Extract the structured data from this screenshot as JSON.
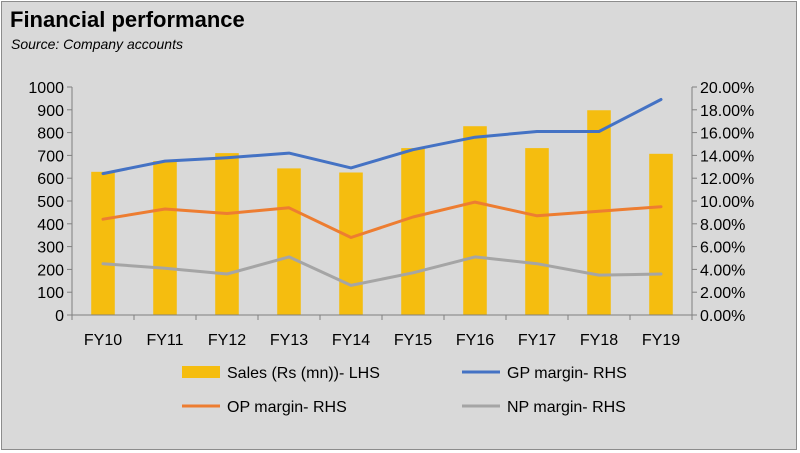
{
  "header": {
    "title": "Financial performance",
    "subtitle": "Source: Company accounts"
  },
  "chart_data": {
    "type": "bar",
    "title": "Financial performance",
    "subtitle": "Source: Company accounts",
    "categories": [
      "FY10",
      "FY11",
      "FY12",
      "FY13",
      "FY14",
      "FY15",
      "FY16",
      "FY17",
      "FY18",
      "FY19"
    ],
    "y_left": {
      "min": 0,
      "max": 1000,
      "step": 100,
      "ticks": [
        "0",
        "100",
        "200",
        "300",
        "400",
        "500",
        "600",
        "700",
        "800",
        "900",
        "1000"
      ]
    },
    "y_right": {
      "min": 0,
      "max": 20,
      "step": 2,
      "ticks": [
        "0.00%",
        "2.00%",
        "4.00%",
        "6.00%",
        "8.00%",
        "10.00%",
        "12.00%",
        "14.00%",
        "16.00%",
        "18.00%",
        "20.00%"
      ]
    },
    "grid": false,
    "legend_position": "bottom",
    "series": [
      {
        "name": "Sales (Rs (mn))- LHS",
        "type": "bar",
        "axis": "left",
        "color": "#f5bd0f",
        "values": [
          628,
          675,
          710,
          643,
          625,
          732,
          828,
          732,
          898,
          707
        ]
      },
      {
        "name": "GP margin- RHS",
        "type": "line",
        "axis": "right",
        "color": "#4472c4",
        "values": [
          12.4,
          13.5,
          13.8,
          14.2,
          12.9,
          14.5,
          15.6,
          16.1,
          16.1,
          18.9
        ]
      },
      {
        "name": "OP margin- RHS",
        "type": "line",
        "axis": "right",
        "color": "#ed7d31",
        "values": [
          8.4,
          9.3,
          8.9,
          9.4,
          6.8,
          8.6,
          9.9,
          8.7,
          9.1,
          9.5
        ]
      },
      {
        "name": "NP margin- RHS",
        "type": "line",
        "axis": "right",
        "color": "#a5a5a5",
        "values": [
          4.5,
          4.1,
          3.6,
          5.1,
          2.6,
          3.7,
          5.1,
          4.5,
          3.5,
          3.6
        ]
      }
    ]
  }
}
